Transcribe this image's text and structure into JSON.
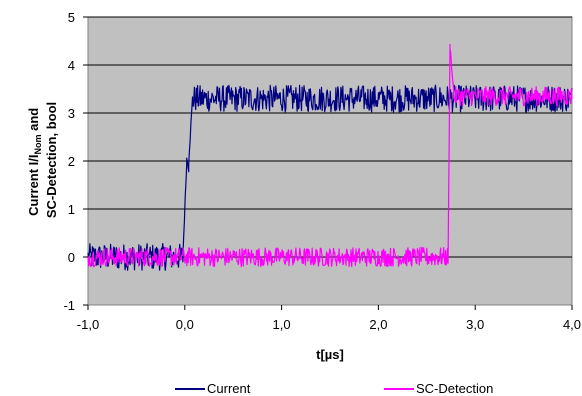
{
  "chart_data": {
    "type": "line",
    "xlabel": "t[µs]",
    "ylabel_line1": "Current I/I",
    "ylabel_subscript": "Nom",
    "ylabel_after_subscript": " and",
    "ylabel_line2": "SC-Detection, bool",
    "xlim": [
      -1.0,
      4.0
    ],
    "ylim": [
      -1,
      5
    ],
    "x_ticks": [
      -1.0,
      0.0,
      1.0,
      2.0,
      3.0,
      4.0
    ],
    "x_tick_labels": [
      "-1,0",
      "0,0",
      "1,0",
      "2,0",
      "3,0",
      "4,0"
    ],
    "y_ticks": [
      -1,
      0,
      1,
      2,
      3,
      4,
      5
    ],
    "y_tick_labels": [
      "-1",
      "0",
      "1",
      "2",
      "3",
      "4",
      "5"
    ],
    "grid": "horizontal",
    "plot_background": "#c0c0c0",
    "legend_position": "bottom",
    "series": [
      {
        "name": "Current",
        "color": "#000080",
        "noise_amplitude": 0.28,
        "segments": [
          {
            "x": [
              -1.0,
              -0.02
            ],
            "level": 0.0
          },
          {
            "x": [
              -0.02,
              0.02
            ],
            "from": 0.0,
            "to": 2.0
          },
          {
            "x": [
              0.02,
              0.04
            ],
            "level": 2.0
          },
          {
            "x": [
              0.04,
              0.08
            ],
            "from": 2.0,
            "to": 3.3
          },
          {
            "x": [
              0.08,
              4.0
            ],
            "level": 3.3
          }
        ]
      },
      {
        "name": "SC-Detection",
        "color": "#ff00ff",
        "noise_amplitude": 0.2,
        "spike": {
          "x": 2.74,
          "y": 4.4
        },
        "segments": [
          {
            "x": [
              -1.0,
              2.72
            ],
            "level": 0.0
          },
          {
            "x": [
              2.72,
              2.74
            ],
            "from": 0.0,
            "to": 4.4
          },
          {
            "x": [
              2.74,
              2.78
            ],
            "from": 4.4,
            "to": 3.4
          },
          {
            "x": [
              2.78,
              4.0
            ],
            "level": 3.35
          }
        ]
      }
    ]
  }
}
